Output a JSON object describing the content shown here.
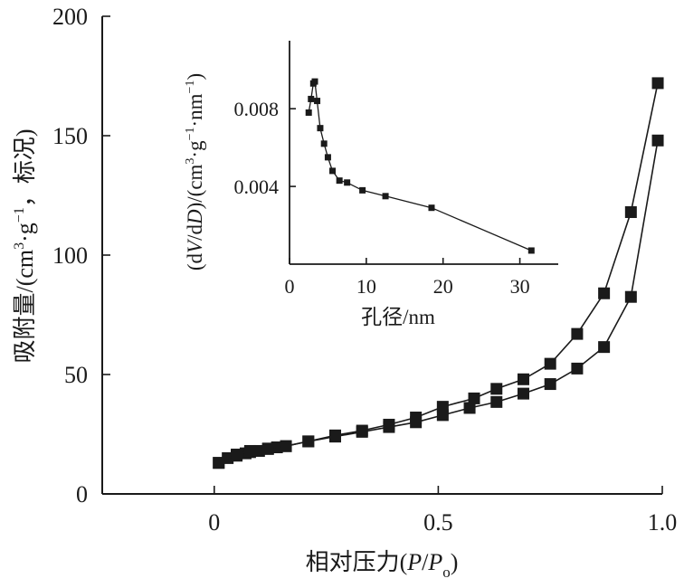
{
  "chart_data": [
    {
      "type": "line",
      "xlabel_parts": [
        "相对压力(",
        "P",
        "/",
        "P",
        "o",
        ")"
      ],
      "ylabel_parts": [
        "吸附量/(cm",
        "3",
        "·g",
        "−1",
        "，标况)"
      ],
      "xlim": [
        -0.25,
        1.0
      ],
      "ylim": [
        0,
        200
      ],
      "xticks": [
        0,
        0.5,
        1.0
      ],
      "xtick_labels": [
        "0",
        "0.5",
        "1.0"
      ],
      "yticks": [
        0,
        50,
        100,
        150,
        200
      ],
      "ytick_labels": [
        "0",
        "50",
        "100",
        "150",
        "200"
      ],
      "grid": false,
      "series": [
        {
          "marker": "square",
          "x": [
            0.01,
            0.03,
            0.05,
            0.07,
            0.08,
            0.1,
            0.12,
            0.14,
            0.16,
            0.21,
            0.27,
            0.33,
            0.39,
            0.45,
            0.51,
            0.57,
            0.63,
            0.69,
            0.75,
            0.81,
            0.87,
            0.93,
            0.99
          ],
          "y": [
            13,
            15,
            16,
            17,
            17.5,
            18,
            18.8,
            19.5,
            20,
            22,
            24,
            26,
            28,
            30,
            33,
            36,
            38.5,
            42,
            46,
            52.5,
            61.5,
            82.5,
            148
          ]
        },
        {
          "marker": "square",
          "x": [
            0.99,
            0.93,
            0.87,
            0.81,
            0.75,
            0.69,
            0.63,
            0.58,
            0.51,
            0.45,
            0.39,
            0.33,
            0.27,
            0.21,
            0.16,
            0.12,
            0.08,
            0.05,
            0.01
          ],
          "y": [
            172,
            118,
            84,
            67,
            54.5,
            48,
            44,
            40,
            36.5,
            32,
            29,
            26.5,
            24.5,
            22,
            20,
            19,
            18,
            16.5,
            13
          ]
        }
      ]
    },
    {
      "type": "line",
      "xlabel": "孔径/nm",
      "ylabel_parts": [
        "(d",
        "V",
        "/d",
        "D",
        ")/(cm",
        "3",
        "·g",
        "−1",
        "·nm",
        "−1",
        ")"
      ],
      "xlim": [
        0,
        35
      ],
      "ylim": [
        0,
        0.0115
      ],
      "xticks": [
        0,
        10,
        20,
        30
      ],
      "xtick_labels": [
        "0",
        "10",
        "20",
        "30"
      ],
      "yticks": [
        0.004,
        0.008
      ],
      "ytick_labels": [
        "0.004",
        "0.008"
      ],
      "grid": false,
      "series": [
        {
          "marker": "square",
          "x": [
            2.5,
            2.8,
            3.1,
            3.3,
            3.6,
            4.0,
            4.5,
            5.0,
            5.6,
            6.5,
            7.5,
            9.5,
            12.5,
            18.5,
            31.5
          ],
          "y": [
            0.0078,
            0.0085,
            0.0093,
            0.0094,
            0.0084,
            0.007,
            0.0062,
            0.0055,
            0.0048,
            0.0043,
            0.0042,
            0.0038,
            0.0035,
            0.0029,
            0.0007
          ]
        }
      ]
    }
  ]
}
